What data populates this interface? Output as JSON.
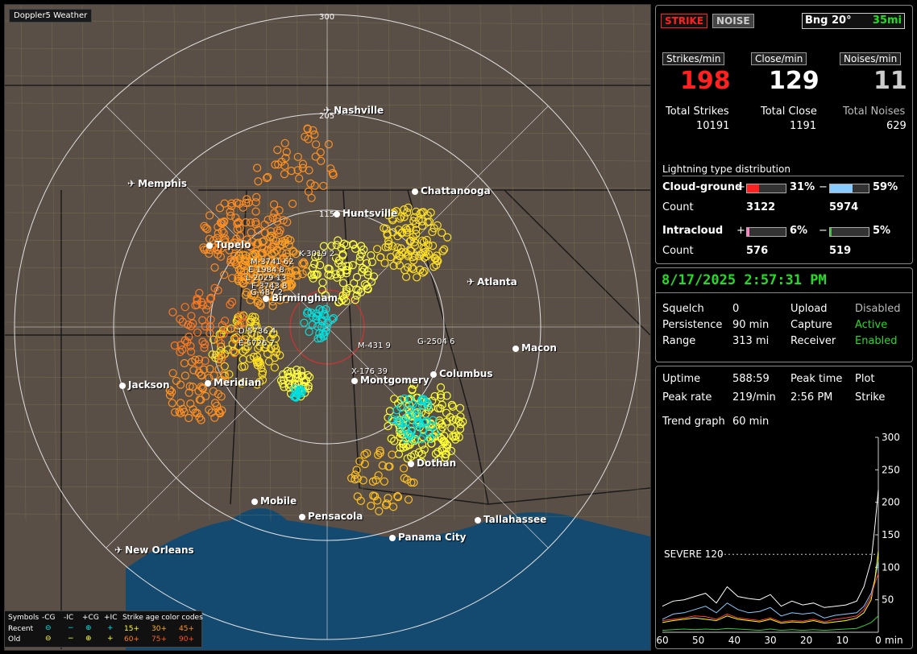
{
  "map": {
    "title": "Doppler5 Weather",
    "range_labels": [
      "300",
      "205",
      "115"
    ],
    "cities": [
      {
        "name": "Nashville",
        "type": "airport"
      },
      {
        "name": "Memphis",
        "type": "airport"
      },
      {
        "name": "Chattanooga",
        "type": "city"
      },
      {
        "name": "Huntsville",
        "type": "city"
      },
      {
        "name": "Tupelo",
        "type": "city"
      },
      {
        "name": "Birmingham",
        "type": "city"
      },
      {
        "name": "Atlanta",
        "type": "airport"
      },
      {
        "name": "Macon",
        "type": "city"
      },
      {
        "name": "Jackson",
        "type": "city"
      },
      {
        "name": "Meridian",
        "type": "city"
      },
      {
        "name": "Montgomery",
        "type": "city"
      },
      {
        "name": "Columbus",
        "type": "city"
      },
      {
        "name": "Dothan",
        "type": "city"
      },
      {
        "name": "Mobile",
        "type": "city"
      },
      {
        "name": "Pensacola",
        "type": "city"
      },
      {
        "name": "Tallahassee",
        "type": "city"
      },
      {
        "name": "Panama City",
        "type": "city"
      },
      {
        "name": "New Orleans",
        "type": "airport"
      }
    ],
    "storm_labels": [
      "K-3019 2",
      "M-3741 62",
      "E-1984 8",
      "L-2029 13",
      "F-3743 8",
      "G-487 2",
      "D-5736 4",
      "E-5726 7",
      "M-431 9",
      "G-2504 6",
      "X-176 39"
    ]
  },
  "legend": {
    "symbols_label": "Symbols",
    "col_headers": [
      "-CG",
      "-IC",
      "+CG",
      "+IC"
    ],
    "recent_label": "Recent",
    "old_label": "Old",
    "age_title": "Strike age color codes",
    "recent_ages": [
      "15+",
      "30+",
      "45+"
    ],
    "old_ages": [
      "60+",
      "75+",
      "90+"
    ]
  },
  "status": {
    "strike_btn": "STRIKE",
    "noise_btn": "NOISE",
    "bearing": "Bng 20°",
    "distance": "35mi",
    "strikes_min_label": "Strikes/min",
    "close_min_label": "Close/min",
    "noises_min_label": "Noises/min",
    "strikes_min": "198",
    "close_min": "129",
    "noises_min": "11",
    "total_strikes_label": "Total Strikes",
    "total_close_label": "Total Close",
    "total_noises_label": "Total Noises",
    "total_strikes": "10191",
    "total_close": "1191",
    "total_noises": "629",
    "dist_title": "Lightning type distribution",
    "cg_label": "Cloud-ground",
    "ic_label": "Intracloud",
    "count_label": "Count",
    "plus": "+",
    "minus": "−",
    "cg_pos_pct": "31%",
    "cg_neg_pct": "59%",
    "cg_pos_count": "3122",
    "cg_neg_count": "5974",
    "ic_pos_pct": "6%",
    "ic_neg_pct": "5%",
    "ic_pos_count": "576",
    "ic_neg_count": "519",
    "cg_pos_frac": 0.31,
    "cg_neg_frac": 0.59,
    "ic_pos_frac": 0.06,
    "ic_neg_frac": 0.05
  },
  "settings": {
    "datetime": "8/17/2025 2:57:31 PM",
    "squelch_label": "Squelch",
    "squelch": "0",
    "persistence_label": "Persistence",
    "persistence": "90 min",
    "range_label": "Range",
    "range": "313 mi",
    "upload_label": "Upload",
    "upload": "Disabled",
    "capture_label": "Capture",
    "capture": "Active",
    "receiver_label": "Receiver",
    "receiver": "Enabled"
  },
  "trend": {
    "uptime_label": "Uptime",
    "uptime": "588:59",
    "peak_time_label": "Peak time",
    "peak_time": "2:56 PM",
    "plot_label": "Plot",
    "plot": "Strike",
    "peak_rate_label": "Peak rate",
    "peak_rate": "219/min",
    "trend_graph_label": "Trend graph",
    "trend_graph": "60 min",
    "severe_label": "SEVERE 120",
    "y_ticks": [
      "300",
      "250",
      "200",
      "150",
      "100",
      "50"
    ],
    "x_ticks": [
      "60",
      "50",
      "40",
      "30",
      "20",
      "10",
      "0"
    ],
    "x_unit": "min"
  },
  "chart_data": {
    "type": "line",
    "xlabel": "min",
    "ylabel": "",
    "x": [
      60,
      57,
      54,
      51,
      48,
      45,
      42,
      39,
      36,
      33,
      30,
      27,
      24,
      21,
      18,
      15,
      12,
      9,
      6,
      4,
      2,
      1,
      0
    ],
    "ylim": [
      0,
      300
    ],
    "xlim": [
      60,
      0
    ],
    "threshold": 120,
    "series": [
      {
        "color": "#ffffff",
        "values": [
          40,
          48,
          50,
          55,
          60,
          45,
          70,
          55,
          52,
          50,
          58,
          40,
          48,
          42,
          45,
          38,
          40,
          42,
          48,
          70,
          110,
          160,
          219
        ]
      },
      {
        "color": "#88ccff",
        "values": [
          20,
          28,
          30,
          35,
          40,
          30,
          45,
          35,
          30,
          32,
          38,
          25,
          30,
          28,
          30,
          22,
          26,
          28,
          30,
          40,
          60,
          80,
          110
        ]
      },
      {
        "color": "#ffff00",
        "values": [
          15,
          18,
          20,
          22,
          20,
          18,
          25,
          20,
          18,
          16,
          20,
          14,
          16,
          15,
          18,
          14,
          16,
          18,
          22,
          30,
          50,
          80,
          125
        ]
      },
      {
        "color": "#ff4040",
        "values": [
          18,
          20,
          22,
          25,
          24,
          20,
          28,
          22,
          20,
          18,
          22,
          16,
          18,
          17,
          20,
          16,
          20,
          22,
          25,
          35,
          55,
          75,
          90
        ]
      },
      {
        "color": "#33cc33",
        "values": [
          3,
          4,
          5,
          4,
          5,
          4,
          6,
          5,
          4,
          3,
          5,
          3,
          4,
          3,
          4,
          3,
          4,
          5,
          6,
          10,
          15,
          20,
          25
        ]
      }
    ]
  },
  "colors": {
    "map_land": "#5a4f47",
    "water": "#154a70",
    "strike_red": "#ff2020",
    "green": "#22dd22",
    "cg_neg_fill": "#88ccff",
    "cg_pos_fill": "#ff2020",
    "ic_pos_fill": "#ff80c0",
    "ic_neg_fill": "#33cc33"
  }
}
